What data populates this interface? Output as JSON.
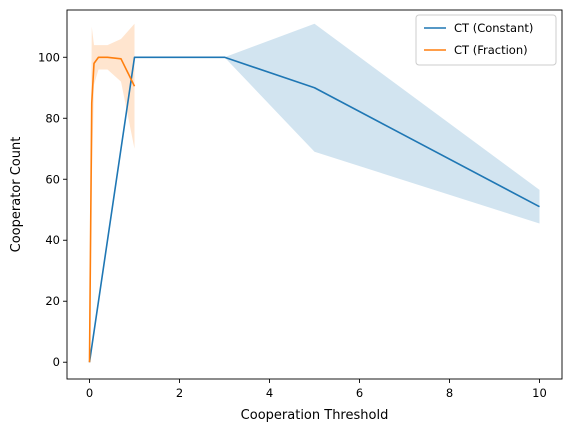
{
  "chart_data": {
    "type": "line",
    "title": "",
    "xlabel": "Cooperation Threshold",
    "ylabel": "Cooperator Count",
    "xlim": [
      -0.5,
      10.5
    ],
    "ylim": [
      -5.5,
      115.5
    ],
    "xticks": [
      0,
      2,
      4,
      6,
      8,
      10
    ],
    "yticks": [
      0,
      20,
      40,
      60,
      80,
      100
    ],
    "grid": false,
    "legend_position": "top-right",
    "series": [
      {
        "name": "CT (Constant)",
        "color": "#1f77b4",
        "band_color": "#1f77b4",
        "band_opacity": 0.2,
        "x": [
          0,
          1,
          3,
          5,
          10
        ],
        "y": [
          0,
          100,
          100,
          90,
          51
        ],
        "lower": [
          0,
          100,
          100,
          69,
          45.5
        ],
        "upper": [
          0,
          100,
          100,
          111,
          56.5
        ]
      },
      {
        "name": "CT (Fraction)",
        "color": "#ff7f0e",
        "band_color": "#ff7f0e",
        "band_opacity": 0.2,
        "x": [
          0,
          0.05,
          0.1,
          0.2,
          0.4,
          0.7,
          1.0
        ],
        "y": [
          0,
          85,
          98,
          100,
          100,
          99.5,
          90.5
        ],
        "lower": [
          0,
          58,
          91,
          96,
          96,
          92,
          70
        ],
        "upper": [
          0,
          110,
          104,
          104,
          104,
          106,
          111
        ]
      }
    ]
  }
}
